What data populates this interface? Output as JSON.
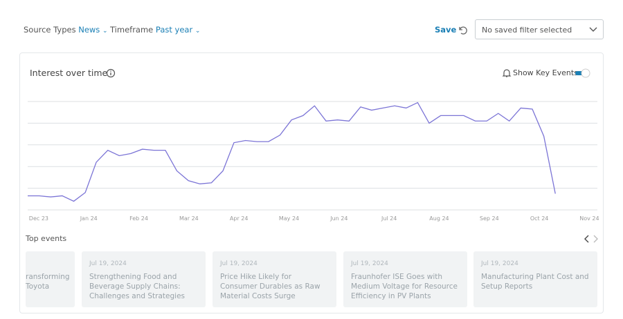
{
  "filters": {
    "source_label": "Source Types",
    "source_value": "News",
    "timeframe_label": "Timeframe",
    "timeframe_value": "Past year",
    "save": "Save",
    "saved_filter": "No saved filter selected"
  },
  "chart_data": {
    "type": "line",
    "title": "Interest over time",
    "toggle_label": "Show Key Events",
    "x": [
      -0.22,
      0.01,
      0.24,
      0.47,
      0.7,
      0.93,
      1.15,
      1.38,
      1.61,
      1.84,
      2.07,
      2.3,
      2.53,
      2.76,
      2.99,
      3.22,
      3.45,
      3.68,
      3.9,
      4.13,
      4.36,
      4.59,
      4.82,
      5.05,
      5.28,
      5.51,
      5.74,
      5.97,
      6.2,
      6.43,
      6.65,
      6.88,
      7.11,
      7.34,
      7.57,
      7.8,
      8.03,
      8.26,
      8.49,
      8.72,
      8.95,
      9.18,
      9.4,
      9.63,
      9.86,
      10.09,
      10.32
    ],
    "values": [
      13,
      13,
      12,
      13,
      8,
      16,
      44,
      55,
      50,
      52,
      56,
      55,
      55,
      36,
      27,
      24,
      25,
      36,
      62,
      64,
      63,
      63,
      69,
      83,
      87,
      96,
      82,
      83,
      82,
      95,
      92,
      94,
      96,
      94,
      99,
      80,
      87,
      87,
      87,
      82,
      82,
      89,
      82,
      94,
      93,
      68,
      15
    ],
    "color": "#7b74d6",
    "xlim": [
      -0.22,
      11.16
    ],
    "xticks": [
      {
        "value": 0,
        "label": "Dec 23"
      },
      {
        "value": 1,
        "label": "Jan 24"
      },
      {
        "value": 2,
        "label": "Feb 24"
      },
      {
        "value": 3,
        "label": "Mar 24"
      },
      {
        "value": 4,
        "label": "Apr 24"
      },
      {
        "value": 5,
        "label": "May 24"
      },
      {
        "value": 6,
        "label": "Jun 24"
      },
      {
        "value": 7,
        "label": "Jul 24"
      },
      {
        "value": 8,
        "label": "Aug 24"
      },
      {
        "value": 9,
        "label": "Sep 24"
      },
      {
        "value": 10,
        "label": "Oct 24"
      },
      {
        "value": 11,
        "label": "Nov 24"
      }
    ],
    "ylim": [
      0,
      100
    ],
    "yticks": [
      0,
      20,
      40,
      60,
      80,
      100
    ],
    "grid": true
  },
  "events": {
    "title": "Top events",
    "items": [
      {
        "title": "ransforming Toyota"
      },
      {
        "date": "Jul 19, 2024",
        "title": "Strengthening Food and Beverage Supply Chains: Challenges and Strategies"
      },
      {
        "date": "Jul 19, 2024",
        "title": "Price Hike Likely for Consumer Durables as Raw Material Costs Surge"
      },
      {
        "date": "Jul 19, 2024",
        "title": "Fraunhofer ISE Goes with Medium Voltage for Resource Efficiency in PV Plants"
      },
      {
        "date": "Jul 19, 2024",
        "title": "Manufacturing Plant Cost and Setup Reports"
      }
    ]
  }
}
